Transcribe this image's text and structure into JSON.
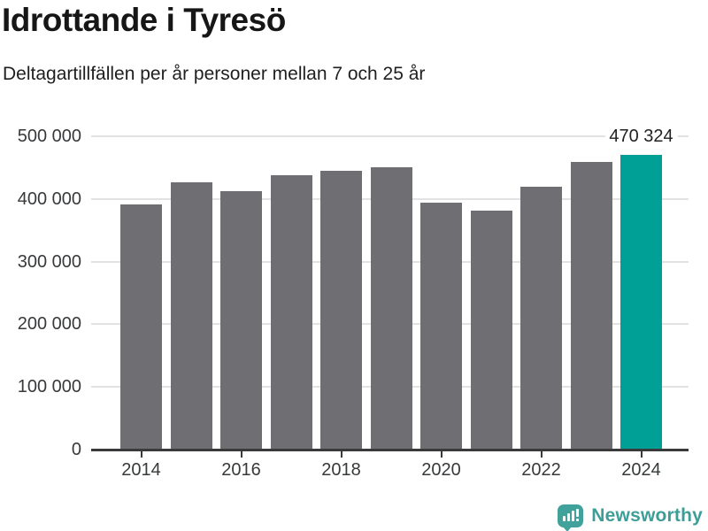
{
  "header": {
    "title": "Idrottande i Tyresö",
    "subtitle": "Deltagartillfällen per år personer mellan 7 och 25 år"
  },
  "chart_data": {
    "type": "bar",
    "title": "Idrottande i Tyresö",
    "subtitle": "Deltagartillfällen per år personer mellan 7 och 25 år",
    "categories": [
      "2014",
      "2015",
      "2016",
      "2017",
      "2018",
      "2019",
      "2020",
      "2021",
      "2022",
      "2023",
      "2024"
    ],
    "values": [
      392000,
      426000,
      413000,
      438000,
      445000,
      450000,
      394000,
      382000,
      420000,
      459000,
      470324
    ],
    "highlight_index": 10,
    "highlight_value_label": "470 324",
    "xlabel": "",
    "ylabel": "",
    "ylim": [
      0,
      500000
    ],
    "ytick_values": [
      0,
      100000,
      200000,
      300000,
      400000,
      500000
    ],
    "ytick_labels": [
      "0",
      "100 000",
      "200 000",
      "300 000",
      "400 000",
      "500 000"
    ],
    "xtick_labels": [
      "2014",
      "2016",
      "2018",
      "2020",
      "2022",
      "2024"
    ],
    "xtick_bar_indexes": [
      0,
      2,
      4,
      6,
      8,
      10
    ],
    "grid": true,
    "legend": "none",
    "bar_color": "#6e6e73",
    "highlight_color": "#00a096"
  },
  "footer": {
    "brand": "Newsworthy"
  },
  "colors": {
    "bar_gray": "#6e6e73",
    "accent_teal": "#00a096",
    "logo_teal": "#41a29c",
    "grid_gray": "#e2e2e2",
    "axis_dark": "#3a3a3a"
  }
}
